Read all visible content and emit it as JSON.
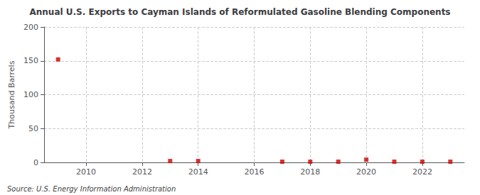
{
  "chart_data": {
    "type": "scatter",
    "title": "Annual U.S. Exports to Cayman Islands of Reformulated Gasoline Blending Components",
    "ylabel": "Thousand Barrels",
    "annotations": [
      "Source: U.S. Energy Information Administration"
    ],
    "x": [
      2009,
      2013,
      2014,
      2017,
      2018,
      2019,
      2020,
      2021,
      2022,
      2023
    ],
    "values": [
      152,
      2,
      2,
      1,
      1,
      1,
      4,
      1,
      1,
      1
    ],
    "color": "#cc0000",
    "marker": "square",
    "xlim": [
      2008.5,
      2023.5
    ],
    "xticks": [
      2010,
      2012,
      2014,
      2016,
      2018,
      2020,
      2022
    ],
    "ylim": [
      0,
      200
    ],
    "yticks": [
      0,
      50,
      100,
      150,
      200
    ],
    "grid": true
  }
}
